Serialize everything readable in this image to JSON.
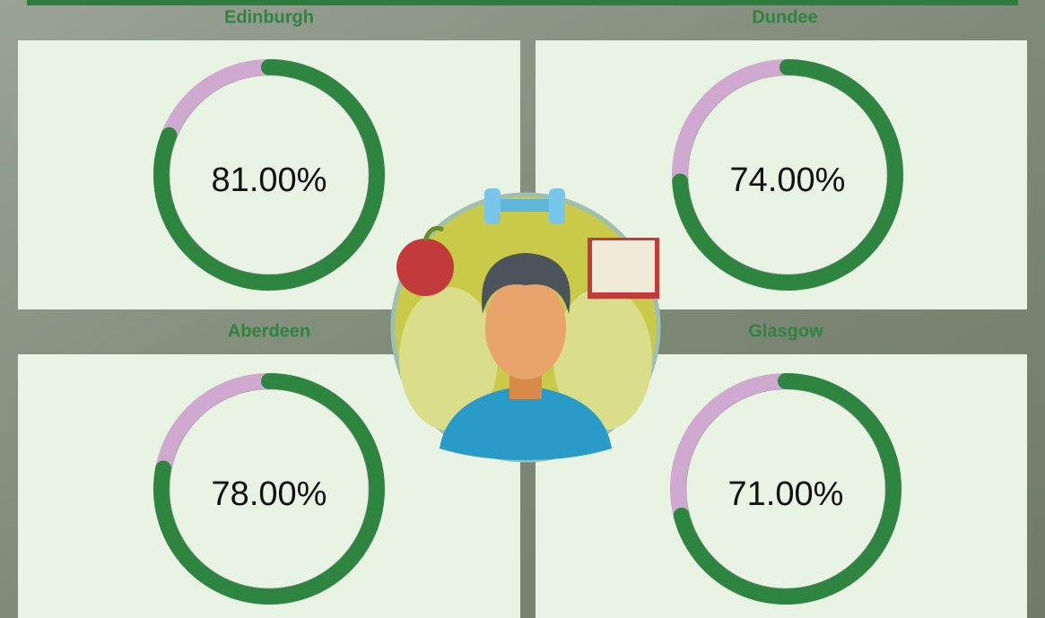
{
  "chart_data": [
    {
      "type": "gauge",
      "title": "Edinburgh",
      "values": [
        81
      ],
      "value_labels": [
        "81.00%"
      ],
      "ylim": [
        0,
        100
      ],
      "color": "#2e8540",
      "track_color": "#cfa9cf"
    },
    {
      "type": "gauge",
      "title": "Dundee",
      "values": [
        74
      ],
      "value_labels": [
        "74.00%"
      ],
      "ylim": [
        0,
        100
      ],
      "color": "#2e8540",
      "track_color": "#cfa9cf"
    },
    {
      "type": "gauge",
      "title": "Aberdeen",
      "values": [
        78
      ],
      "value_labels": [
        "78.00%"
      ],
      "ylim": [
        0,
        100
      ],
      "color": "#2e8540",
      "track_color": "#cfa9cf"
    },
    {
      "type": "gauge",
      "title": "Glasgow",
      "values": [
        71
      ],
      "value_labels": [
        "71.00%"
      ],
      "ylim": [
        0,
        100
      ],
      "color": "#2e8540",
      "track_color": "#cfa9cf"
    }
  ]
}
